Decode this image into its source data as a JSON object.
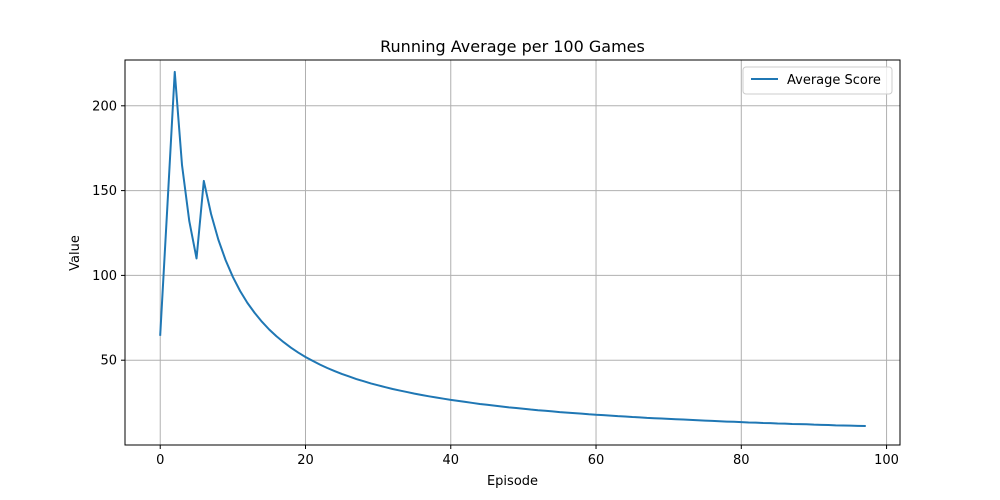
{
  "chart_data": {
    "type": "line",
    "title": "Running Average per 100 Games",
    "xlabel": "Episode",
    "ylabel": "Value",
    "xlim": [
      -4.85,
      101.85
    ],
    "ylim": [
      0,
      227
    ],
    "xticks": [
      0,
      20,
      40,
      60,
      80,
      100
    ],
    "yticks": [
      50,
      100,
      150,
      200
    ],
    "grid": true,
    "legend_position": "top-right",
    "series": [
      {
        "name": "Average Score",
        "color": "#1f77b4",
        "x": [
          0,
          1,
          2,
          3,
          4,
          5,
          6,
          7,
          8,
          9,
          10,
          11,
          12,
          13,
          14,
          15,
          16,
          17,
          18,
          19,
          20,
          21,
          22,
          23,
          24,
          25,
          26,
          27,
          28,
          29,
          30,
          31,
          32,
          33,
          34,
          35,
          36,
          37,
          38,
          39,
          40,
          41,
          42,
          43,
          44,
          45,
          46,
          47,
          48,
          49,
          50,
          51,
          52,
          53,
          54,
          55,
          56,
          57,
          58,
          59,
          60,
          61,
          62,
          63,
          64,
          65,
          66,
          67,
          68,
          69,
          70,
          71,
          72,
          73,
          74,
          75,
          76,
          77,
          78,
          79,
          80,
          81,
          82,
          83,
          84,
          85,
          86,
          87,
          88,
          89,
          90,
          91,
          92,
          93,
          94,
          95,
          96,
          97
        ],
        "y": [
          65,
          142,
          220,
          165,
          132,
          110,
          155.7,
          136.2,
          121.1,
          109,
          99.1,
          90.8,
          83.8,
          77.9,
          72.7,
          68.1,
          64.1,
          60.6,
          57.4,
          54.5,
          51.9,
          49.6,
          47.4,
          45.4,
          43.6,
          41.9,
          40.4,
          38.9,
          37.6,
          36.3,
          35.2,
          34.1,
          33.0,
          32.1,
          31.2,
          30.3,
          29.5,
          28.7,
          28.0,
          27.3,
          26.6,
          26.0,
          25.4,
          24.8,
          24.2,
          23.7,
          23.2,
          22.7,
          22.2,
          21.8,
          21.4,
          20.9,
          20.5,
          20.2,
          19.8,
          19.4,
          19.1,
          18.8,
          18.5,
          18.1,
          17.8,
          17.6,
          17.3,
          17.0,
          16.8,
          16.5,
          16.3,
          16.0,
          15.8,
          15.6,
          15.4,
          15.2,
          15.0,
          14.8,
          14.6,
          14.4,
          14.2,
          14.0,
          13.8,
          13.7,
          13.5,
          13.3,
          13.2,
          13.0,
          12.9,
          12.7,
          12.6,
          12.4,
          12.3,
          12.2,
          12.0,
          11.9,
          11.8,
          11.6,
          11.5,
          11.4,
          11.3,
          11.2
        ]
      }
    ]
  }
}
